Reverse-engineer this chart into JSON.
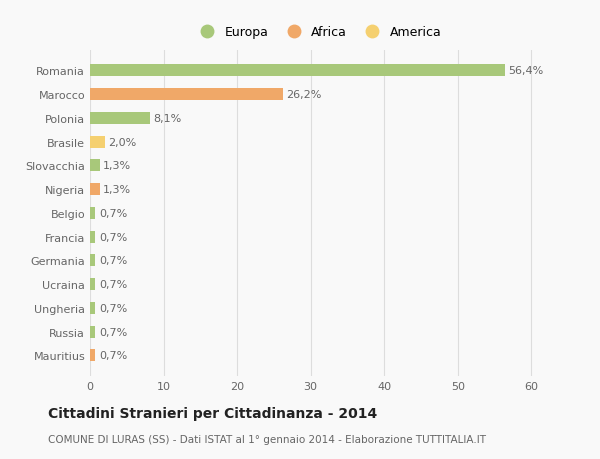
{
  "categories": [
    "Mauritius",
    "Russia",
    "Ungheria",
    "Ucraina",
    "Germania",
    "Francia",
    "Belgio",
    "Nigeria",
    "Slovacchia",
    "Brasile",
    "Polonia",
    "Marocco",
    "Romania"
  ],
  "values": [
    0.7,
    0.7,
    0.7,
    0.7,
    0.7,
    0.7,
    0.7,
    1.3,
    1.3,
    2.0,
    8.1,
    26.2,
    56.4
  ],
  "labels": [
    "0,7%",
    "0,7%",
    "0,7%",
    "0,7%",
    "0,7%",
    "0,7%",
    "0,7%",
    "1,3%",
    "1,3%",
    "2,0%",
    "8,1%",
    "26,2%",
    "56,4%"
  ],
  "colors": [
    "#f0a868",
    "#a8c87a",
    "#a8c87a",
    "#a8c87a",
    "#a8c87a",
    "#a8c87a",
    "#a8c87a",
    "#f0a868",
    "#a8c87a",
    "#f5d070",
    "#a8c87a",
    "#f0a868",
    "#a8c87a"
  ],
  "legend": [
    {
      "label": "Europa",
      "color": "#a8c87a"
    },
    {
      "label": "Africa",
      "color": "#f0a868"
    },
    {
      "label": "America",
      "color": "#f5d070"
    }
  ],
  "title": "Cittadini Stranieri per Cittadinanza - 2014",
  "subtitle": "COMUNE DI LURAS (SS) - Dati ISTAT al 1° gennaio 2014 - Elaborazione TUTTITALIA.IT",
  "xlim": [
    0,
    62
  ],
  "xticks": [
    0,
    10,
    20,
    30,
    40,
    50,
    60
  ],
  "bg_color": "#f9f9f9",
  "bar_height": 0.5,
  "grid_color": "#dddddd",
  "title_fontsize": 10,
  "subtitle_fontsize": 7.5,
  "label_fontsize": 8,
  "tick_fontsize": 8,
  "legend_fontsize": 9
}
